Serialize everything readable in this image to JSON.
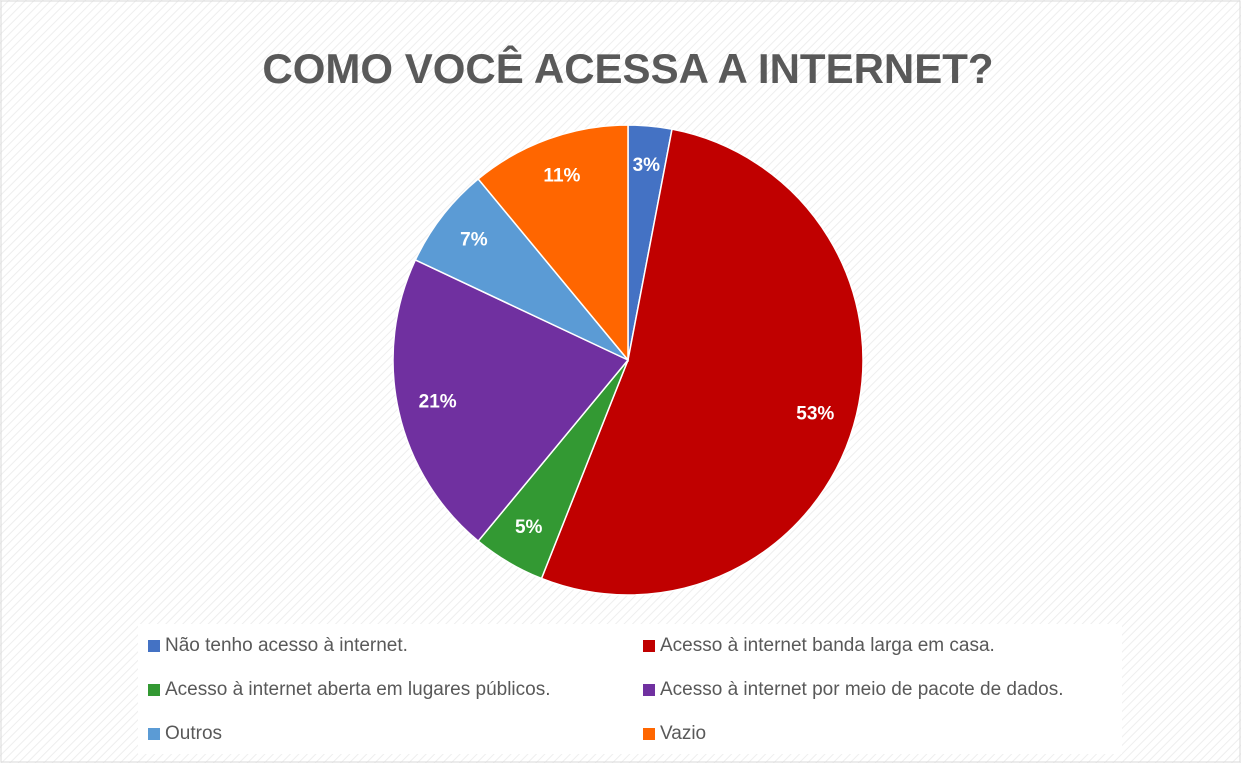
{
  "chart_data": {
    "type": "pie",
    "title": "COMO VOCÊ ACESSA A INTERNET?",
    "categories": [
      "Não tenho acesso à internet.",
      "Acesso à internet banda larga em casa.",
      "Acesso à internet aberta em lugares públicos.",
      "Acesso à internet por meio de pacote de dados.",
      "Outros",
      "Vazio"
    ],
    "values": [
      3,
      53,
      5,
      21,
      7,
      11
    ],
    "value_labels": [
      "3%",
      "53%",
      "5%",
      "21%",
      "7%",
      "11%"
    ],
    "colors": [
      "#4472c4",
      "#c00000",
      "#339933",
      "#7030a0",
      "#5b9bd5",
      "#ff6600"
    ],
    "legend": "bottom"
  }
}
